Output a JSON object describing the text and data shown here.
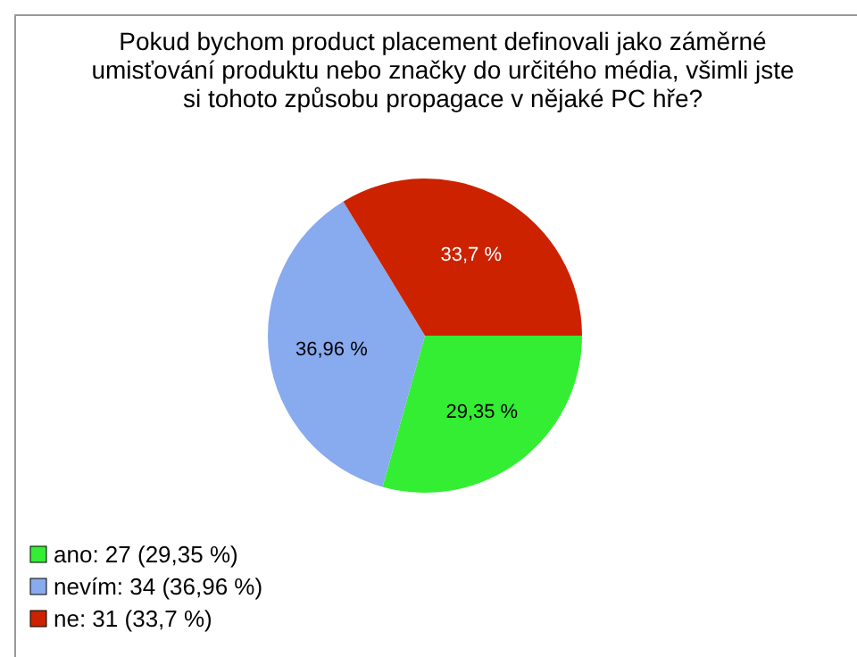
{
  "chart_data": {
    "type": "pie",
    "title": "Pokud bychom product placement definovali jako záměrné umisťování produktu nebo značky do určitého média, všimli jste si tohoto způsobu propagace v nějaké PC hře?",
    "categories": [
      "ano: 27 (29,35 %)",
      "nevím: 34 (36,96 %)",
      "ne: 31 (33,7 %)"
    ],
    "values": [
      29.35,
      36.96,
      33.7
    ],
    "value_labels": [
      "29,35 %",
      "36,96 %",
      "33,7 %"
    ],
    "colors": [
      "#33ee33",
      "#88aaee",
      "#cc2200"
    ],
    "legend": "bottom left"
  }
}
